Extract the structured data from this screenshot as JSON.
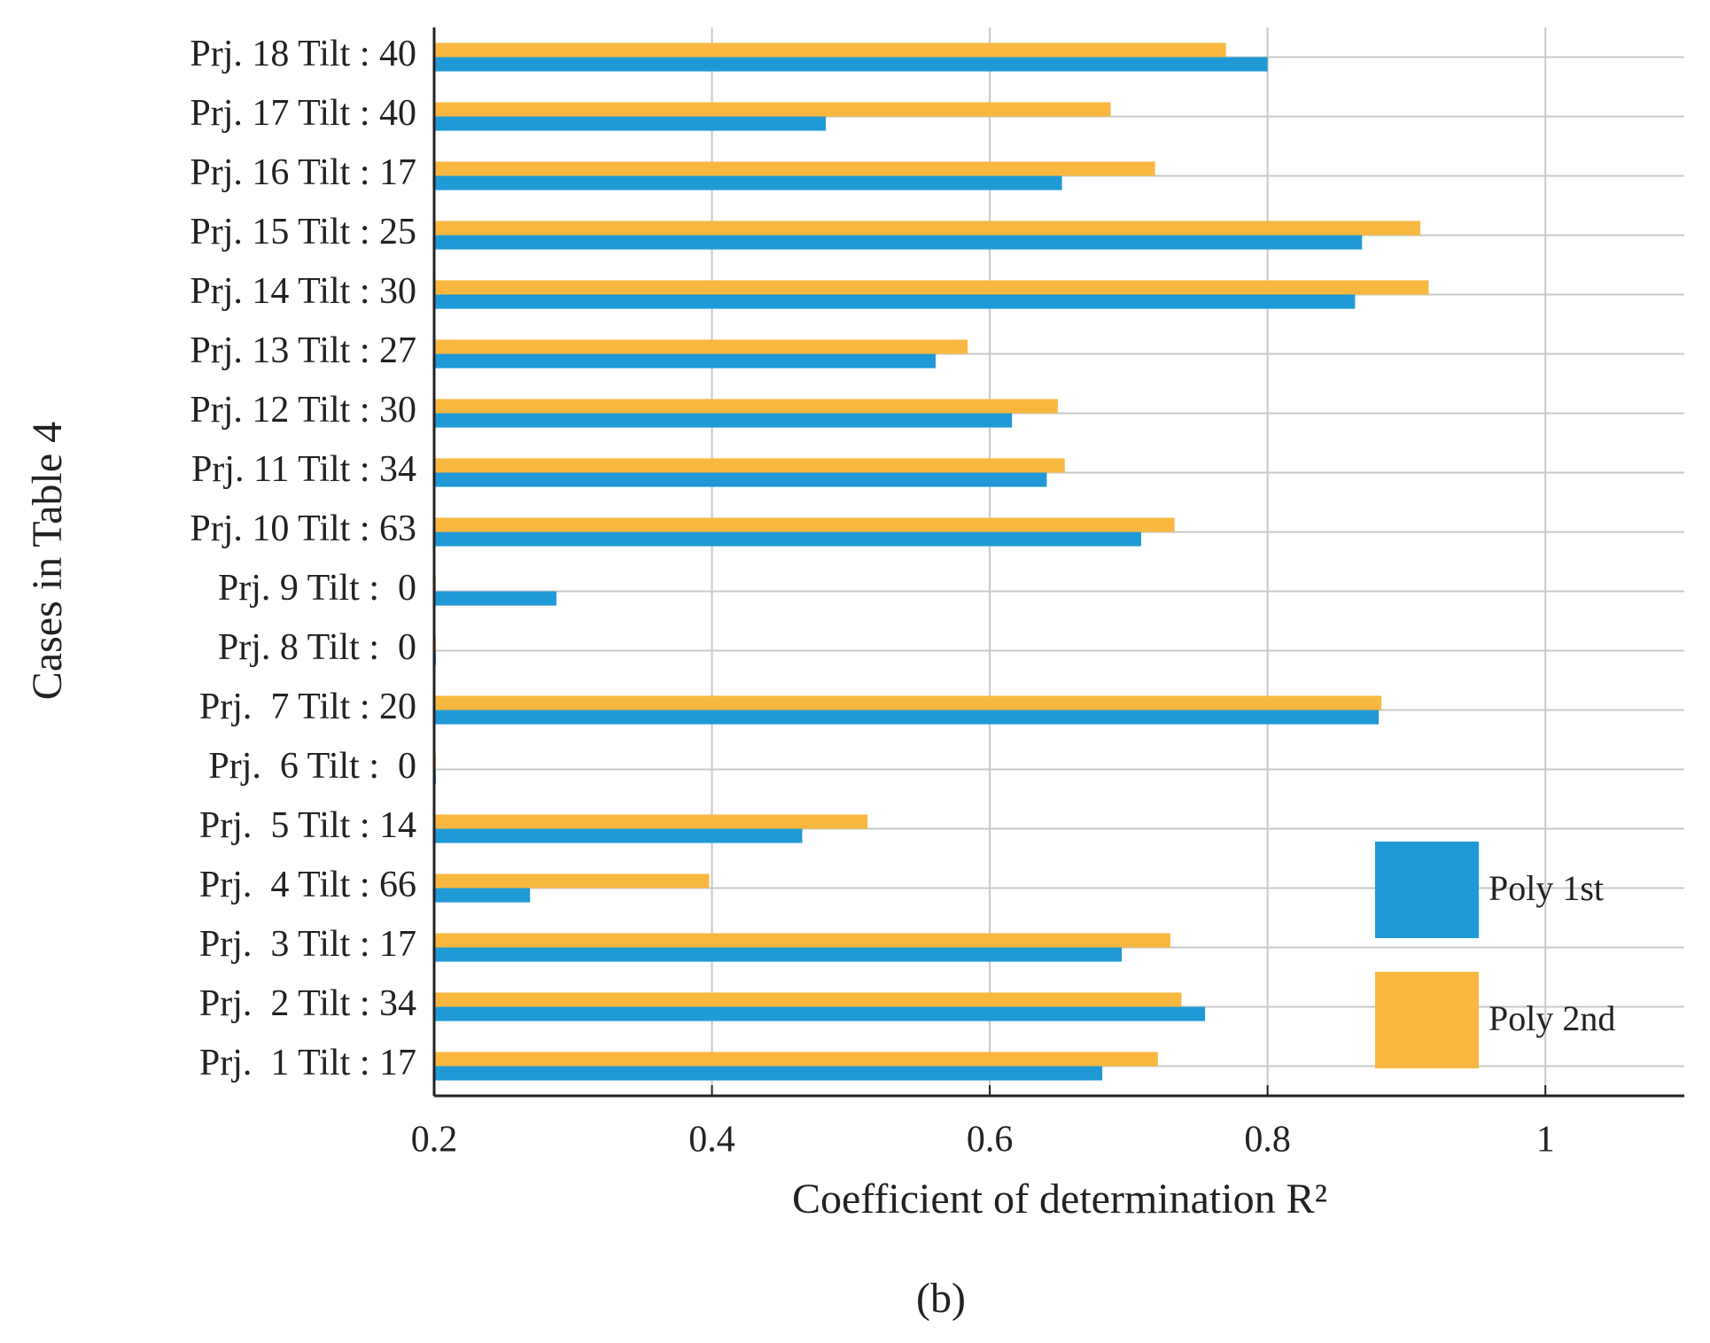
{
  "chart_data": {
    "type": "barh",
    "xlabel": "Coefficient of determination R²",
    "ylabel": "Cases in Table 4",
    "caption": "(b)",
    "categories": [
      "Prj.  1 Tilt : 17",
      "Prj.  2 Tilt : 34",
      "Prj.  3 Tilt : 17",
      "Prj.  4 Tilt : 66",
      "Prj.  5 Tilt : 14",
      "Prj.  6 Tilt :  0",
      "Prj.  7 Tilt : 20",
      "Prj. 8 Tilt :  0",
      "Prj. 9 Tilt :  0",
      "Prj. 10 Tilt : 63",
      "Prj. 11 Tilt : 34",
      "Prj. 12 Tilt : 30",
      "Prj. 13 Tilt : 27",
      "Prj. 14 Tilt : 30",
      "Prj. 15 Tilt : 25",
      "Prj. 16 Tilt : 17",
      "Prj. 17 Tilt : 40",
      "Prj. 18 Tilt : 40"
    ],
    "series": [
      {
        "name": "Poly 1st",
        "color": "#1f9ad6",
        "values": [
          0.681,
          0.755,
          0.695,
          0.269,
          0.465,
          0.2,
          0.88,
          0.2,
          0.288,
          0.709,
          0.641,
          0.616,
          0.561,
          0.863,
          0.868,
          0.652,
          0.482,
          0.8
        ]
      },
      {
        "name": "Poly 2nd",
        "color": "#f8b840",
        "values": [
          0.721,
          0.738,
          0.73,
          0.398,
          0.512,
          0.2,
          0.882,
          0.2,
          0.2,
          0.733,
          0.654,
          0.649,
          0.584,
          0.916,
          0.91,
          0.719,
          0.687,
          0.77
        ]
      }
    ],
    "xlim": [
      0.2,
      1.1
    ],
    "xticks": [
      {
        "value": 0.2,
        "label": "0.2"
      },
      {
        "value": 0.4,
        "label": "0.4"
      },
      {
        "value": 0.6,
        "label": "0.6"
      },
      {
        "value": 0.8,
        "label": "0.8"
      },
      1
    ],
    "grid": true,
    "legend": "lower right"
  }
}
